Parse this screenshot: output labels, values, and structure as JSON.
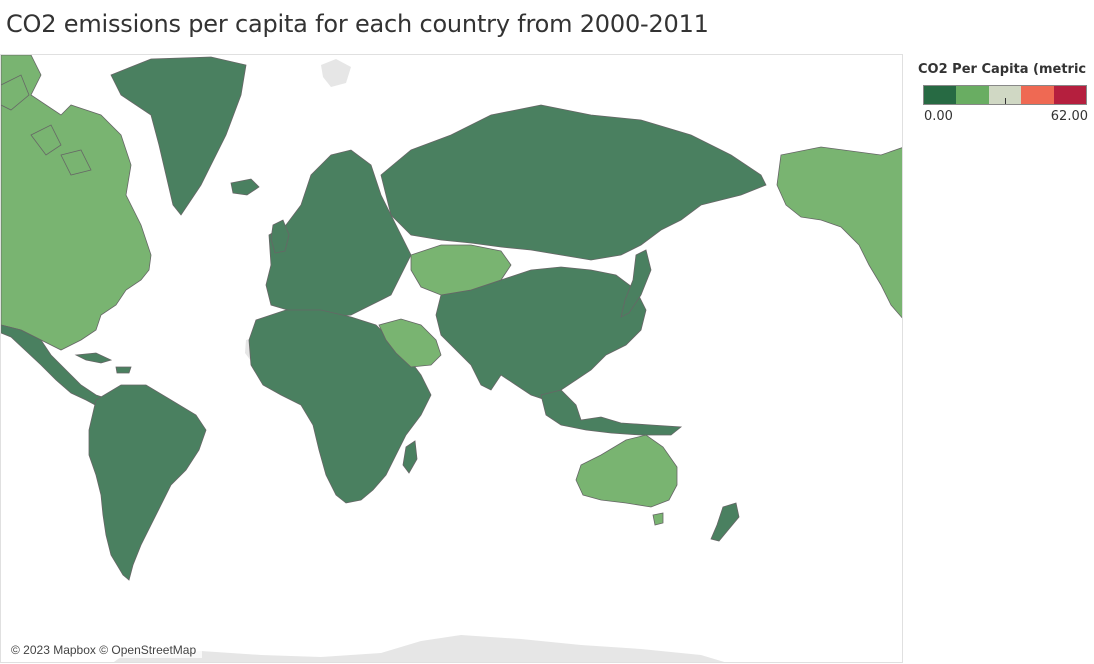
{
  "title": "CO2 emissions per capita for each country from 2000-2011",
  "legend": {
    "title": "CO2 Per Capita (metric ..",
    "min_label": "0.00",
    "max_label": "62.00",
    "colors": [
      "#276a43",
      "#69ad62",
      "#d0d8c4",
      "#ef6953",
      "#b51f3e"
    ]
  },
  "map": {
    "attribution": "© 2023 Mapbox © OpenStreetMap",
    "colors": {
      "low_emission": "#4a8060",
      "mid_emission": "#79b471",
      "no_data": "#e6e6e6",
      "border": "#666666"
    }
  }
}
